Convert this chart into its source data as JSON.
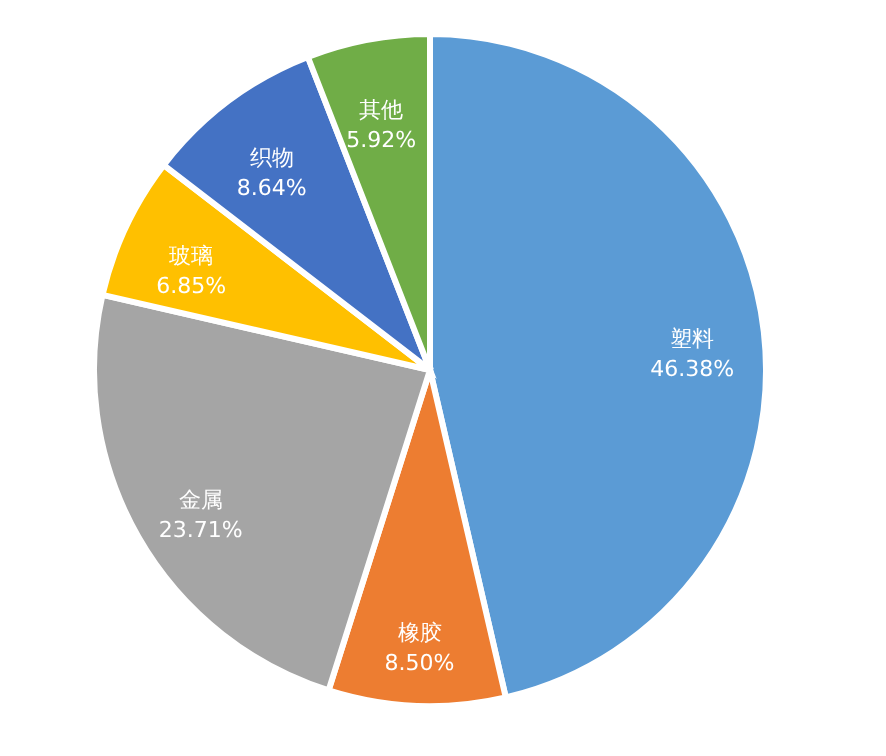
{
  "chart_data": {
    "type": "pie",
    "categories": [
      "塑料",
      "橡胶",
      "金属",
      "玻璃",
      "织物",
      "其他"
    ],
    "values": [
      46.38,
      8.5,
      23.71,
      6.85,
      8.64,
      5.92
    ],
    "colors": [
      "#5b9bd5",
      "#ed7d31",
      "#a5a5a5",
      "#ffc000",
      "#4472c4",
      "#70ad47"
    ],
    "value_labels": [
      "46.38%",
      "8.50%",
      "23.71%",
      "6.85%",
      "8.64%",
      "5.92%"
    ],
    "legend": false
  }
}
